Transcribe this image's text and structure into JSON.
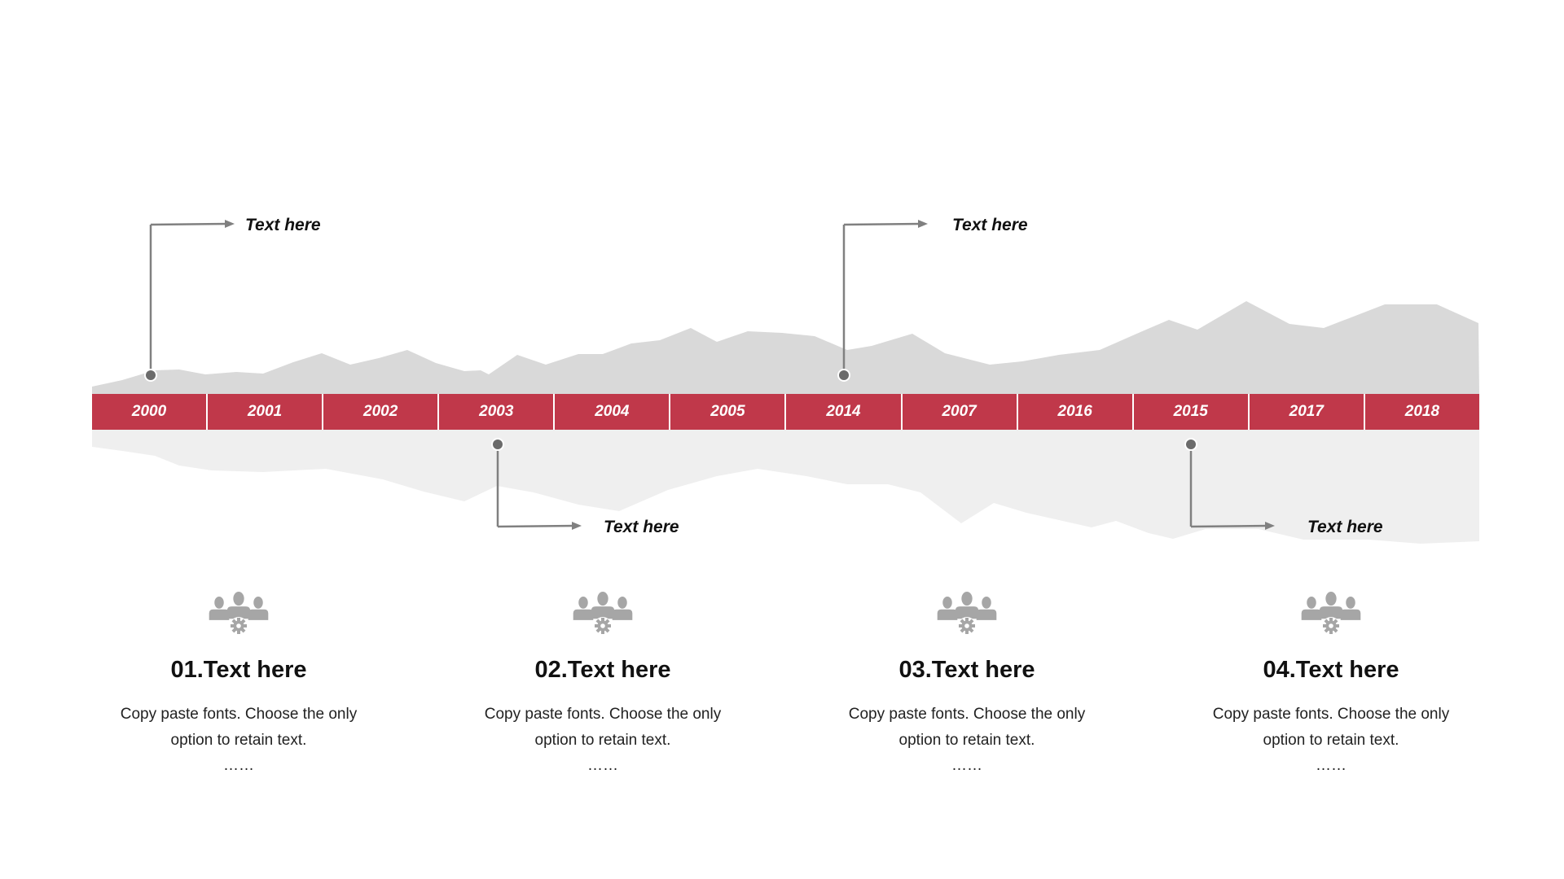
{
  "colors": {
    "accent": "#c0384a",
    "upper_mountain": "#d9d9d9",
    "lower_mountain": "#efefef",
    "connector": "#808080",
    "icon": "#a6a6a6"
  },
  "timeline": {
    "years": [
      "2000",
      "2001",
      "2002",
      "2003",
      "2004",
      "2005",
      "2014",
      "2007",
      "2016",
      "2015",
      "2017",
      "2018"
    ]
  },
  "callouts": [
    {
      "label": "Text here",
      "year_index": 0,
      "side": "above"
    },
    {
      "label": "Text here",
      "year_index": 3,
      "side": "below"
    },
    {
      "label": "Text here",
      "year_index": 6,
      "side": "above"
    },
    {
      "label": "Text here",
      "year_index": 9,
      "side": "below"
    }
  ],
  "columns": [
    {
      "icon": "team-gear-icon",
      "title": "01.Text here",
      "line1": "Copy paste fonts. Choose the only",
      "line2": "option to retain text.",
      "dots": "……"
    },
    {
      "icon": "team-gear-icon",
      "title": "02.Text here",
      "line1": "Copy paste fonts. Choose the only",
      "line2": "option to retain text.",
      "dots": "……"
    },
    {
      "icon": "team-gear-icon",
      "title": "03.Text here",
      "line1": "Copy paste fonts. Choose the only",
      "line2": "option to retain text.",
      "dots": "……"
    },
    {
      "icon": "team-gear-icon",
      "title": "04.Text here",
      "line1": "Copy paste fonts. Choose the only",
      "line2": "option to retain text.",
      "dots": "……"
    }
  ]
}
